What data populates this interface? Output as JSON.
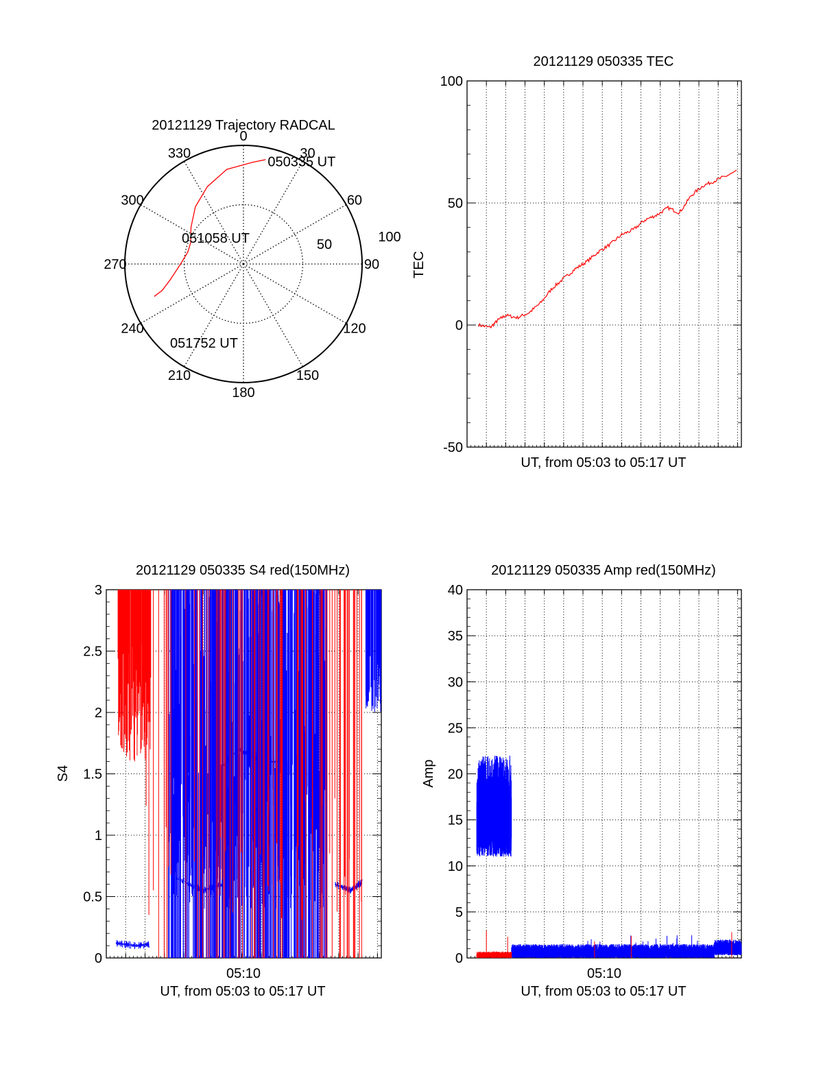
{
  "colors": {
    "red": "#ff0000",
    "blue": "#0000ff",
    "axis": "#000000",
    "grid": "#000000"
  },
  "chart_data": [
    {
      "id": "trajectory",
      "type": "polar",
      "title": "20121129 Trajectory RADCAL",
      "azimuth_labels": [
        "0",
        "30",
        "60",
        "90",
        "120",
        "150",
        "180",
        "210",
        "240",
        "270",
        "300",
        "330"
      ],
      "elevation_rings": [
        {
          "value": 50,
          "label": "50"
        },
        {
          "value": 100,
          "label": "100"
        }
      ],
      "annotations": [
        {
          "label": "050335 UT",
          "az": 12,
          "r": 90
        },
        {
          "label": "051058 UT",
          "az": 330,
          "r": 33
        },
        {
          "label": "051752 UT",
          "az": 245,
          "r": 85
        }
      ],
      "track": {
        "color": "#ff0000",
        "az": [
          12,
          5,
          350,
          335,
          320,
          305,
          292,
          282,
          270,
          258,
          252,
          250
        ],
        "r": [
          90,
          86,
          81,
          72,
          63,
          54,
          48,
          48,
          53,
          63,
          72,
          80
        ]
      },
      "grid": true
    },
    {
      "id": "tec",
      "type": "line",
      "title": "20121129 050335 TEC",
      "xlabel": "UT, from 05:03 to 05:17 UT",
      "ylabel": "TEC",
      "xlim": [
        3.0,
        17.2
      ],
      "ylim": [
        -50,
        100
      ],
      "yticks": [
        -50,
        0,
        50,
        100
      ],
      "xticks_minutes": [
        4,
        5,
        6,
        7,
        8,
        9,
        10,
        11,
        12,
        13,
        14,
        15,
        16,
        17
      ],
      "grid": true,
      "series": [
        {
          "color": "#ff0000",
          "x": [
            3.6,
            4.2,
            4.6,
            5.0,
            5.6,
            6.2,
            6.8,
            7.4,
            8.0,
            8.6,
            9.2,
            9.8,
            10.4,
            11.0,
            11.6,
            12.2,
            12.8,
            13.4,
            14.0,
            14.6,
            15.2,
            15.8,
            16.4,
            17.0
          ],
          "y": [
            0,
            -1,
            2,
            4,
            3,
            5,
            9,
            15,
            19,
            23,
            26,
            30,
            33,
            37,
            39,
            43,
            45,
            48,
            46,
            53,
            57,
            59,
            61,
            63
          ]
        }
      ]
    },
    {
      "id": "s4",
      "type": "line",
      "title": "20121129 050335 S4 red(150MHz)",
      "xlabel": "UT, from 05:03 to 05:17 UT",
      "ylabel": "S4",
      "xtick_label": "05:10",
      "xlim": [
        3.0,
        17.2
      ],
      "ylim": [
        0,
        3
      ],
      "yticks": [
        0,
        0.5,
        1,
        1.5,
        2,
        2.5,
        3
      ],
      "ytick_labels": [
        "0",
        "0.5",
        "1",
        "1.5",
        "2",
        "2.5",
        "3"
      ],
      "grid": true,
      "series": [
        {
          "color": "#0000ff",
          "segments": [
            {
              "x": [
                3.5,
                4.5,
                5.2
              ],
              "y": [
                0.12,
                0.1,
                0.11
              ]
            },
            {
              "x": [
                6.6,
                8.0,
                9.0
              ],
              "y": [
                0.65,
                0.55,
                0.6
              ]
            },
            {
              "x": [
                8.6,
                9.8,
                11.0,
                12.0
              ],
              "y": [
                1.5,
                1.7,
                1.6,
                1.6
              ]
            },
            {
              "x": [
                14.8,
                15.6,
                16.2
              ],
              "y": [
                0.6,
                0.55,
                0.62
              ]
            }
          ]
        },
        {
          "color": "#ff0000",
          "segments": [
            {
              "x": [
                3.6,
                4.4,
                5.3
              ],
              "y": [
                2.3,
                2.5,
                2.2
              ]
            }
          ]
        }
      ]
    },
    {
      "id": "amp",
      "type": "line",
      "title": "20121129 050335 Amp red(150MHz)",
      "xlabel": "UT, from 05:03 to 05:17 UT",
      "ylabel": "Amp",
      "xtick_label": "05:10",
      "xlim": [
        3.0,
        17.2
      ],
      "ylim": [
        0,
        40
      ],
      "yticks": [
        0,
        5,
        10,
        15,
        20,
        25,
        30,
        35,
        40
      ],
      "grid": true,
      "series": [
        {
          "color": "#0000ff",
          "segments": [
            {
              "x": [
                3.5,
                5.3
              ],
              "y": [
                16,
                16
              ],
              "band": [
                11,
                22
              ]
            },
            {
              "x": [
                5.3,
                15.8
              ],
              "y": [
                0.5,
                0.5
              ],
              "band": [
                0,
                1.5
              ]
            },
            {
              "x": [
                15.8,
                17.2
              ],
              "y": [
                1,
                1
              ],
              "band": [
                0.3,
                2
              ]
            }
          ]
        },
        {
          "color": "#ff0000",
          "segments": [
            {
              "x": [
                3.5,
                5.3
              ],
              "y": [
                0.3,
                0.3
              ],
              "band": [
                0,
                0.7
              ]
            }
          ]
        }
      ]
    }
  ]
}
